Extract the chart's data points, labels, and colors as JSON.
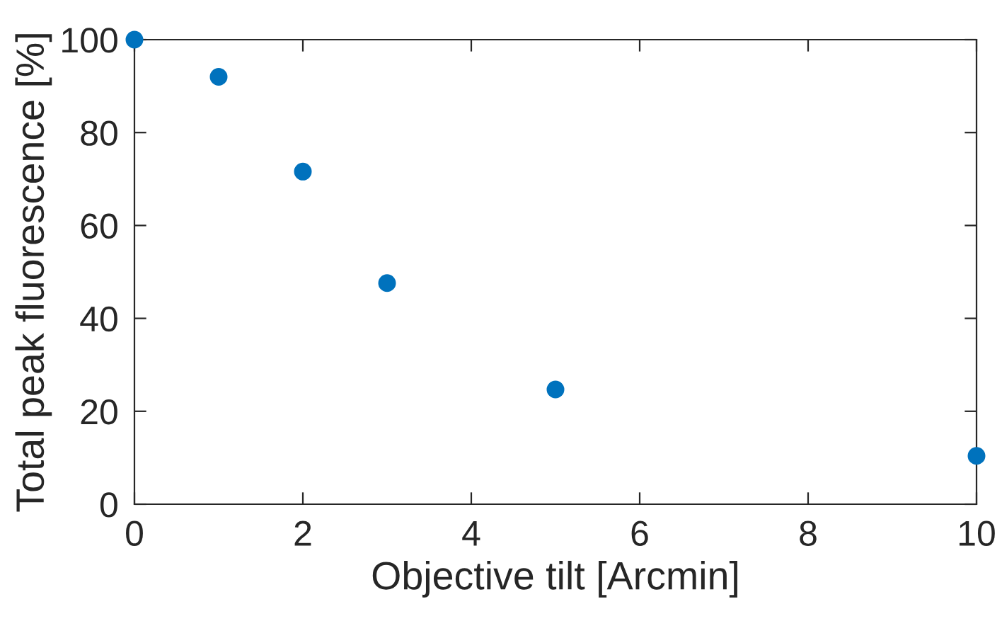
{
  "chart_data": {
    "type": "scatter",
    "xlabel": "Objective tilt [Arcmin]",
    "ylabel": "Total peak fluorescence [%]",
    "x": [
      0,
      1,
      2,
      3,
      5,
      10
    ],
    "series": [
      {
        "color": "#0072bd",
        "values": [
          100,
          92,
          71.6,
          47.6,
          24.7,
          10.4
        ]
      }
    ],
    "xlim": [
      0,
      10
    ],
    "ylim": [
      0,
      100
    ],
    "xticks": [
      0,
      2,
      4,
      6,
      8,
      10
    ],
    "yticks": [
      0,
      20,
      40,
      60,
      80,
      100
    ],
    "grid": false,
    "legend": false,
    "marker": "circle"
  }
}
